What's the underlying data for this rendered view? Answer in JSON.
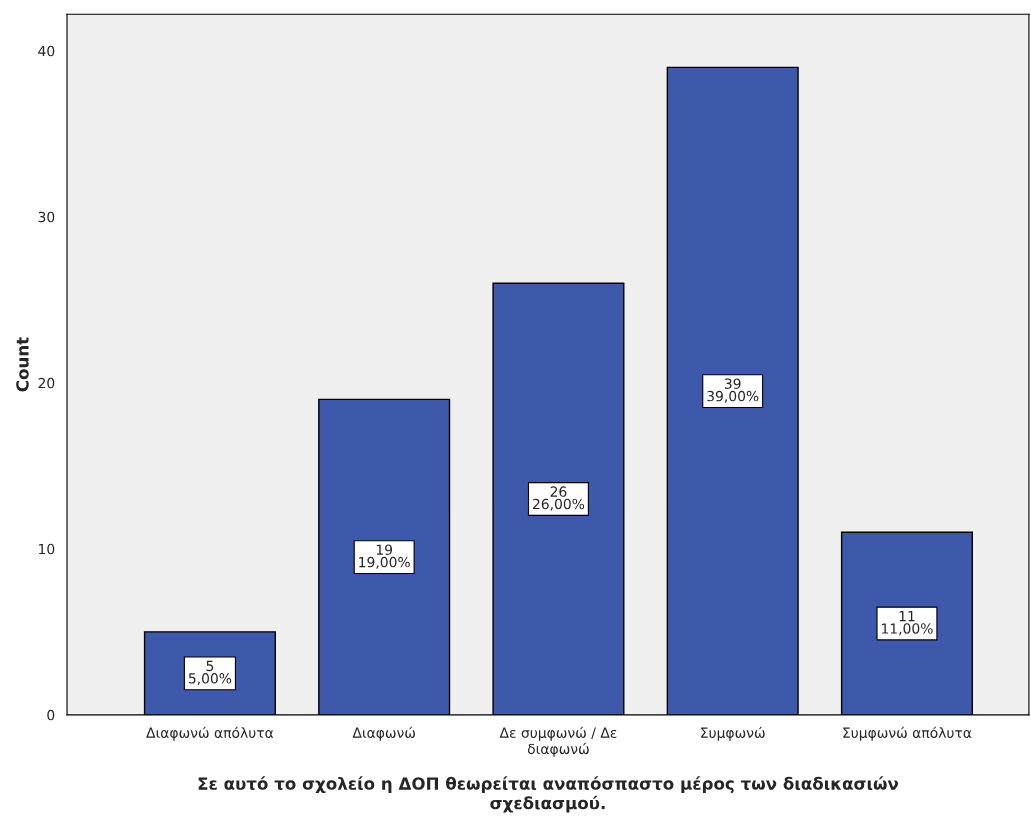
{
  "chart_data": {
    "type": "bar",
    "xlabel": "Σε αυτό το σχολείο η ΔΟΠ θεωρείται αναπόσπαστο μέρος των διαδικασιών\nσχεδιασμού.",
    "ylabel": "Count",
    "categories": [
      "Διαφωνώ απόλυτα",
      "Διαφωνώ",
      "Δε συμφωνώ / Δε\nδιαφωνώ",
      "Συμφωνώ",
      "Συμφωνώ απόλυτα"
    ],
    "values": [
      5,
      19,
      26,
      39,
      11
    ],
    "color": "#3e58ac",
    "value_labels": [
      "5\n5,00%",
      "19\n19,00%",
      "26\n26,00%",
      "39\n39,00%",
      "11\n11,00%"
    ],
    "ylim": [
      0,
      42.2
    ],
    "yticks": [
      0,
      10,
      20,
      30,
      40
    ],
    "grid": false,
    "legend": false
  }
}
